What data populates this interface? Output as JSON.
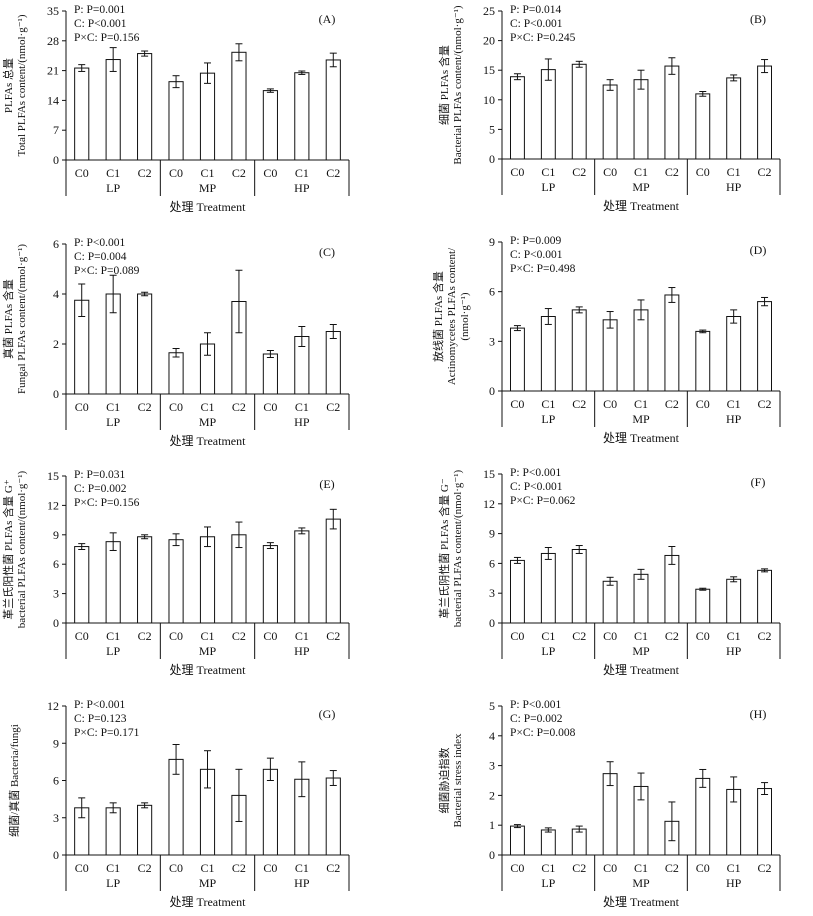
{
  "figure": {
    "xlabel": "处理 Treatment",
    "bar_labels": [
      "C0",
      "C1",
      "C2",
      "C0",
      "C1",
      "C2",
      "C0",
      "C1",
      "C2"
    ],
    "group_labels": [
      "LP",
      "MP",
      "HP"
    ]
  },
  "chart_data": [
    {
      "type": "bar",
      "panel_label": "(A)",
      "ylabel_lines": [
        "PLFAs 总量",
        "Total PLFAs content/(nmol·g⁻¹)"
      ],
      "stats": [
        "P: P=0.001",
        "C: P<0.001",
        "P×C: P=0.156"
      ],
      "ylim": [
        0,
        35
      ],
      "yticks": [
        0,
        7,
        14,
        21,
        28,
        35
      ],
      "categories": [
        "LP-C0",
        "LP-C1",
        "LP-C2",
        "MP-C0",
        "MP-C1",
        "MP-C2",
        "HP-C0",
        "HP-C1",
        "HP-C2"
      ],
      "values": [
        21.6,
        23.6,
        25.0,
        18.4,
        20.4,
        25.3,
        16.3,
        20.5,
        23.5
      ],
      "errors": [
        0.8,
        2.8,
        0.6,
        1.4,
        2.4,
        2.0,
        0.4,
        0.4,
        1.6
      ]
    },
    {
      "type": "bar",
      "panel_label": "(B)",
      "ylabel_lines": [
        "细菌 PLFAs 含量",
        "Bacterial PLFAs content/(nmol·g⁻¹)"
      ],
      "stats": [
        "P: P=0.014",
        "C: P<0.001",
        "P×C: P=0.245"
      ],
      "ylim": [
        0,
        25
      ],
      "yticks": [
        0,
        5,
        10,
        15,
        20,
        25
      ],
      "categories": [
        "LP-C0",
        "LP-C1",
        "LP-C2",
        "MP-C0",
        "MP-C1",
        "MP-C2",
        "HP-C0",
        "HP-C1",
        "HP-C2"
      ],
      "values": [
        13.9,
        15.1,
        16.0,
        12.5,
        13.4,
        15.7,
        11.0,
        13.7,
        15.7
      ],
      "errors": [
        0.5,
        1.8,
        0.5,
        0.9,
        1.6,
        1.4,
        0.4,
        0.5,
        1.1
      ]
    },
    {
      "type": "bar",
      "panel_label": "(C)",
      "ylabel_lines": [
        "真菌 PLFAs 含量",
        "Fungal PLFAs content/(nmol·g⁻¹)"
      ],
      "stats": [
        "P: P<0.001",
        "C: P=0.004",
        "P×C: P=0.089"
      ],
      "ylim": [
        0,
        6
      ],
      "yticks": [
        0,
        2,
        4,
        6
      ],
      "categories": [
        "LP-C0",
        "LP-C1",
        "LP-C2",
        "MP-C0",
        "MP-C1",
        "MP-C2",
        "HP-C0",
        "HP-C1",
        "HP-C2"
      ],
      "values": [
        3.75,
        4.0,
        4.0,
        1.65,
        2.0,
        3.7,
        1.6,
        2.3,
        2.5
      ],
      "errors": [
        0.65,
        0.75,
        0.07,
        0.17,
        0.45,
        1.25,
        0.14,
        0.4,
        0.28
      ]
    },
    {
      "type": "bar",
      "panel_label": "(D)",
      "ylabel_lines": [
        "放线菌 PLFAs 含量",
        "Actinomycetes PLFAs content/",
        "(nmol·g⁻¹)"
      ],
      "stats": [
        "P: P=0.009",
        "C: P<0.001",
        "P×C: P=0.498"
      ],
      "ylim": [
        0,
        9
      ],
      "yticks": [
        0,
        3,
        6,
        9
      ],
      "categories": [
        "LP-C0",
        "LP-C1",
        "LP-C2",
        "MP-C0",
        "MP-C1",
        "MP-C2",
        "HP-C0",
        "HP-C1",
        "HP-C2"
      ],
      "values": [
        3.8,
        4.5,
        4.9,
        4.3,
        4.9,
        5.8,
        3.6,
        4.5,
        5.4
      ],
      "errors": [
        0.15,
        0.48,
        0.18,
        0.5,
        0.6,
        0.45,
        0.08,
        0.4,
        0.25
      ]
    },
    {
      "type": "bar",
      "panel_label": "(E)",
      "ylabel_lines": [
        "革兰氏阳性菌 PLFAs 含量 G⁺",
        "bacterial PLFAs content/(nmol·g⁻¹)"
      ],
      "stats": [
        "P: P=0.031",
        "C: P=0.002",
        "P×C: P=0.156"
      ],
      "ylim": [
        0,
        15
      ],
      "yticks": [
        0,
        3,
        6,
        9,
        12,
        15
      ],
      "categories": [
        "LP-C0",
        "LP-C1",
        "LP-C2",
        "MP-C0",
        "MP-C1",
        "MP-C2",
        "HP-C0",
        "HP-C1",
        "HP-C2"
      ],
      "values": [
        7.8,
        8.3,
        8.8,
        8.5,
        8.8,
        9.0,
        7.9,
        9.4,
        10.6
      ],
      "errors": [
        0.3,
        0.9,
        0.2,
        0.6,
        1.0,
        1.3,
        0.3,
        0.3,
        1.0
      ]
    },
    {
      "type": "bar",
      "panel_label": "(F)",
      "ylabel_lines": [
        "革兰氏阴性菌 PLFAs 含量 G⁻",
        "bacterial PLFAs content/(nmol·g⁻¹)"
      ],
      "stats": [
        "P: P<0.001",
        "C: P<0.001",
        "P×C: P=0.062"
      ],
      "ylim": [
        0,
        15
      ],
      "yticks": [
        0,
        3,
        6,
        9,
        12,
        15
      ],
      "categories": [
        "LP-C0",
        "LP-C1",
        "LP-C2",
        "MP-C0",
        "MP-C1",
        "MP-C2",
        "HP-C0",
        "HP-C1",
        "HP-C2"
      ],
      "values": [
        6.3,
        7.0,
        7.4,
        4.2,
        4.9,
        6.8,
        3.4,
        4.4,
        5.3
      ],
      "errors": [
        0.3,
        0.6,
        0.4,
        0.4,
        0.5,
        0.9,
        0.1,
        0.25,
        0.15
      ]
    },
    {
      "type": "bar",
      "panel_label": "(G)",
      "ylabel_lines": [
        "细菌/真菌 Bacteria/fungi"
      ],
      "stats": [
        "P: P<0.001",
        "C: P=0.123",
        "P×C: P=0.171"
      ],
      "ylim": [
        0,
        12
      ],
      "yticks": [
        0,
        3,
        6,
        9,
        12
      ],
      "categories": [
        "LP-C0",
        "LP-C1",
        "LP-C2",
        "MP-C0",
        "MP-C1",
        "MP-C2",
        "HP-C0",
        "HP-C1",
        "HP-C2"
      ],
      "values": [
        3.8,
        3.8,
        4.0,
        7.7,
        6.9,
        4.8,
        6.9,
        6.1,
        6.2
      ],
      "errors": [
        0.8,
        0.4,
        0.2,
        1.2,
        1.5,
        2.1,
        0.9,
        1.4,
        0.6
      ]
    },
    {
      "type": "bar",
      "panel_label": "(H)",
      "ylabel_lines": [
        "细菌胁迫指数",
        "Bacterial stress index"
      ],
      "stats": [
        "P: P<0.001",
        "C: P=0.002",
        "P×C: P=0.008"
      ],
      "ylim": [
        0,
        5
      ],
      "yticks": [
        0,
        1,
        2,
        3,
        4,
        5
      ],
      "categories": [
        "LP-C0",
        "LP-C1",
        "LP-C2",
        "MP-C0",
        "MP-C1",
        "MP-C2",
        "HP-C0",
        "HP-C1",
        "HP-C2"
      ],
      "values": [
        0.97,
        0.84,
        0.87,
        2.73,
        2.3,
        1.13,
        2.57,
        2.2,
        2.23
      ],
      "errors": [
        0.05,
        0.07,
        0.1,
        0.4,
        0.45,
        0.65,
        0.3,
        0.42,
        0.2
      ]
    }
  ]
}
